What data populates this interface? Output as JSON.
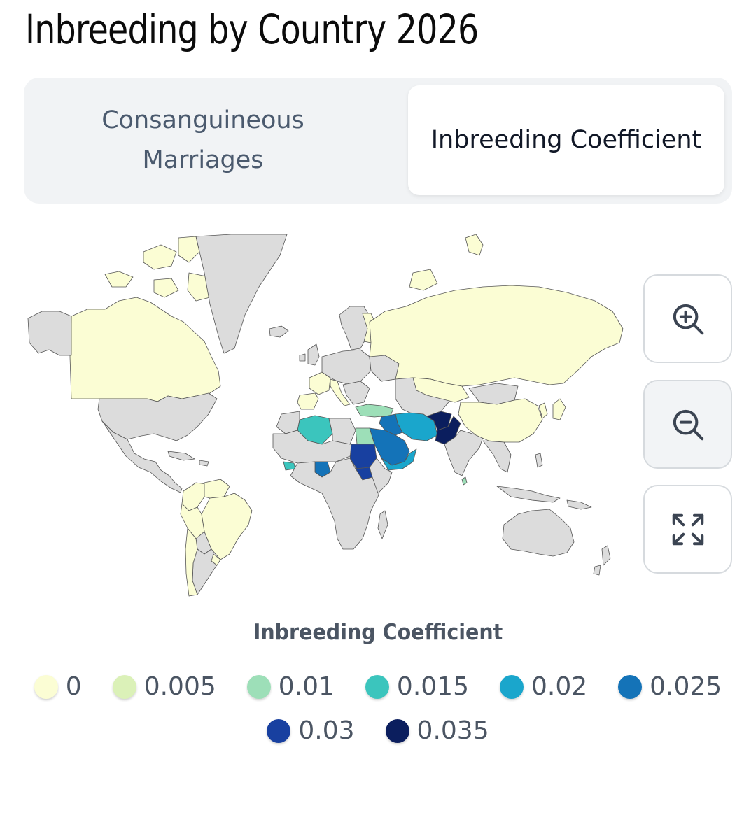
{
  "page": {
    "title": "Inbreeding by Country 2026"
  },
  "tabs": [
    {
      "label": "Consanguineous Marriages",
      "active": false
    },
    {
      "label": "Inbreeding Coefficient",
      "active": true
    }
  ],
  "map": {
    "colors": {
      "no_data": "#dcdcdc",
      "0": "#fbfdd4",
      "0.005": "#dbf1b8",
      "0.01": "#9ddfb8",
      "0.015": "#3bc5bd",
      "0.02": "#1aa6cc",
      "0.025": "#1473b8",
      "0.03": "#1840a0",
      "0.035": "#0b1e5e"
    },
    "controls": {
      "zoom_in_icon": "zoom-in-icon",
      "zoom_out_icon": "zoom-out-icon",
      "fullscreen_icon": "fullscreen-icon"
    }
  },
  "legend": {
    "title": "Inbreeding Coefficient",
    "items": [
      {
        "label": "0",
        "color": "#fbfdd4"
      },
      {
        "label": "0.005",
        "color": "#dbf1b8"
      },
      {
        "label": "0.01",
        "color": "#9ddfb8"
      },
      {
        "label": "0.015",
        "color": "#3bc5bd"
      },
      {
        "label": "0.02",
        "color": "#1aa6cc"
      },
      {
        "label": "0.025",
        "color": "#1473b8"
      },
      {
        "label": "0.03",
        "color": "#1840a0"
      },
      {
        "label": "0.035",
        "color": "#0b1e5e"
      }
    ]
  }
}
